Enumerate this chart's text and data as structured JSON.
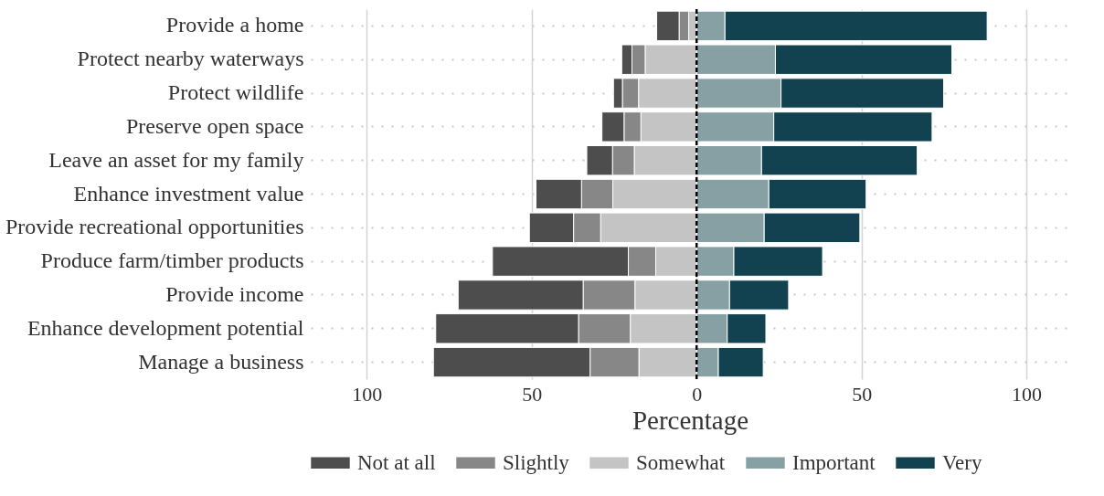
{
  "chart_data": {
    "type": "bar",
    "orientation": "horizontal",
    "stacked": true,
    "xlabel": "Percentage",
    "categories": [
      "Provide a home",
      "Protect nearby waterways",
      "Protect wildlife",
      "Preserve open space",
      "Leave an asset for my family",
      "Enhance investment value",
      "Provide recreational opportunities",
      "Produce farm/timber products",
      "Provide income",
      "Enhance development potential",
      "Manage a business"
    ],
    "series": [
      {
        "name": "Not at all",
        "color": "#4d4d4d",
        "values": [
          -6.8,
          -3.1,
          -2.7,
          -6.7,
          -7.8,
          -13.8,
          -13.4,
          -41.2,
          -37.9,
          -43.3,
          -47.5
        ]
      },
      {
        "name": "Slightly",
        "color": "#878787",
        "values": [
          -2.9,
          -4.0,
          -4.9,
          -5.1,
          -6.6,
          -9.5,
          -8.2,
          -8.3,
          -15.7,
          -15.7,
          -14.8
        ]
      },
      {
        "name": "Somewhat",
        "color": "#c4c4c4",
        "values": [
          -2.4,
          -15.6,
          -17.6,
          -16.9,
          -18.9,
          -25.4,
          -29.1,
          -12.4,
          -18.7,
          -20.1,
          -17.5
        ]
      },
      {
        "name": "Important",
        "color": "#87a0a4",
        "values": [
          8.6,
          23.9,
          25.6,
          23.4,
          19.7,
          21.9,
          20.5,
          11.3,
          10.0,
          9.3,
          6.6
        ]
      },
      {
        "name": "Very",
        "color": "#12424f",
        "values": [
          79.5,
          53.5,
          49.3,
          48.0,
          47.2,
          29.5,
          29.0,
          26.9,
          17.9,
          11.7,
          13.6
        ]
      }
    ],
    "xlim": [
      -117,
      113
    ],
    "xticks": [
      {
        "value": -100,
        "label": "100"
      },
      {
        "value": -50,
        "label": "50"
      },
      0,
      50,
      100
    ],
    "ref_lines": [
      {
        "axis": "x",
        "value": 0,
        "color": "#000000",
        "line_style": "dashed"
      }
    ],
    "grid": true,
    "legend": "bottom"
  }
}
